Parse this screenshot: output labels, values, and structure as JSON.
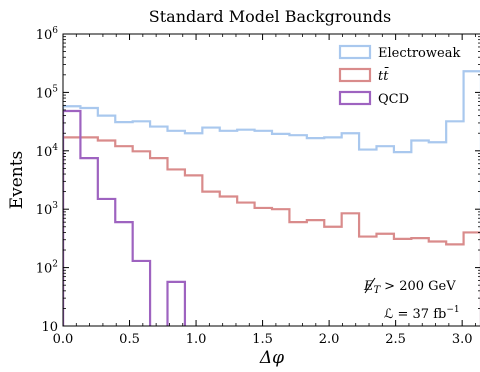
{
  "chart_data": {
    "type": "step-histogram",
    "title": "Standard Model Backgrounds",
    "xlabel": "Δφ",
    "ylabel": "Events",
    "xlim": [
      0,
      3.1416
    ],
    "ylim": [
      10,
      1000000
    ],
    "yscale": "log",
    "xticks": [
      "0.0",
      "0.5",
      "1.0",
      "1.5",
      "2.0",
      "2.5",
      "3.0"
    ],
    "xtick_values": [
      0,
      0.5,
      1.0,
      1.5,
      2.0,
      2.5,
      3.0
    ],
    "yticks": [
      {
        "value": 10,
        "base": "10",
        "exp": ""
      },
      {
        "value": 100,
        "base": "10",
        "exp": "2"
      },
      {
        "value": 1000,
        "base": "10",
        "exp": "3"
      },
      {
        "value": 10000,
        "base": "10",
        "exp": "4"
      },
      {
        "value": 100000,
        "base": "10",
        "exp": "5"
      },
      {
        "value": 1000000,
        "base": "10",
        "exp": "6"
      }
    ],
    "bin_width": 0.1309,
    "n_bins": 24,
    "legend_position": "top-right",
    "series": [
      {
        "name": "Electroweak",
        "color": "#a9c8ee",
        "values": [
          58000,
          54000,
          40000,
          31000,
          32000,
          26000,
          22000,
          20000,
          25000,
          22000,
          23000,
          22000,
          19500,
          18500,
          16500,
          17000,
          20000,
          10500,
          12000,
          9500,
          15000,
          14000,
          32000,
          230000
        ]
      },
      {
        "name": "tt̄",
        "color": "#d98b8b",
        "values": [
          17000,
          17000,
          15000,
          12000,
          9800,
          7500,
          4800,
          3800,
          2000,
          1650,
          1300,
          1050,
          1000,
          600,
          650,
          500,
          850,
          340,
          380,
          310,
          320,
          280,
          250,
          400
        ]
      },
      {
        "name": "QCD",
        "color": "#9e63c0",
        "values": [
          48000,
          7500,
          1500,
          600,
          130,
          0,
          57,
          0,
          0,
          0,
          0,
          0,
          0,
          0,
          0,
          0,
          0,
          0,
          0,
          0,
          0,
          0,
          0,
          0
        ]
      }
    ],
    "annotations": {
      "met_lhs": "E",
      "met_sub": "T",
      "met_rhs": "> 200 GeV",
      "lumi_lhs": "ℒ = 37 fb",
      "lumi_exp": "−1"
    }
  }
}
